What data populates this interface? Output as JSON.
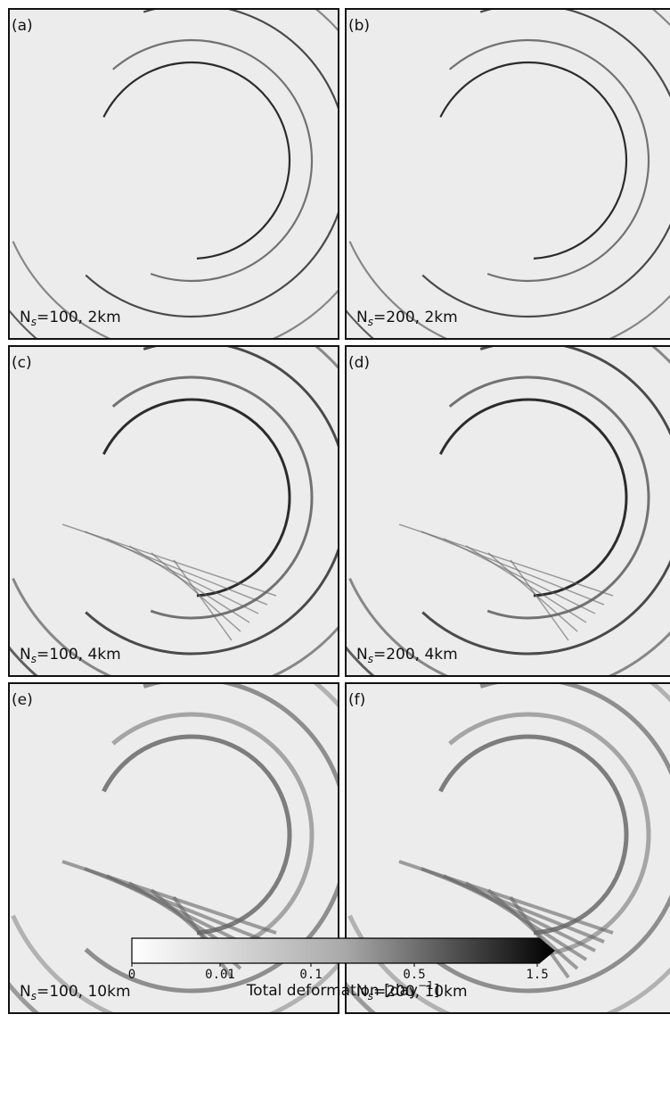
{
  "panels": [
    {
      "letter": "(a)",
      "label": {
        "base": "N",
        "sub": "s",
        "rest": "=100, 2km"
      }
    },
    {
      "letter": "(b)",
      "label": {
        "base": "N",
        "sub": "s",
        "rest": "=200, 2km"
      }
    },
    {
      "letter": "(c)",
      "label": {
        "base": "N",
        "sub": "s",
        "rest": "=100, 4km"
      }
    },
    {
      "letter": "(d)",
      "label": {
        "base": "N",
        "sub": "s",
        "rest": "=200, 4km"
      }
    },
    {
      "letter": "(e)",
      "label": {
        "base": "N",
        "sub": "s",
        "rest": "=100, 10km"
      }
    },
    {
      "letter": "(f)",
      "label": {
        "base": "N",
        "sub": "s",
        "rest": "=200, 10km"
      }
    }
  ],
  "colorbar": {
    "ticks": [
      "0",
      "0.01",
      "0.1",
      "0.5",
      "1.5"
    ],
    "label": {
      "text": "Total deformation [day",
      "sup": "−1",
      "close": "]"
    }
  }
}
